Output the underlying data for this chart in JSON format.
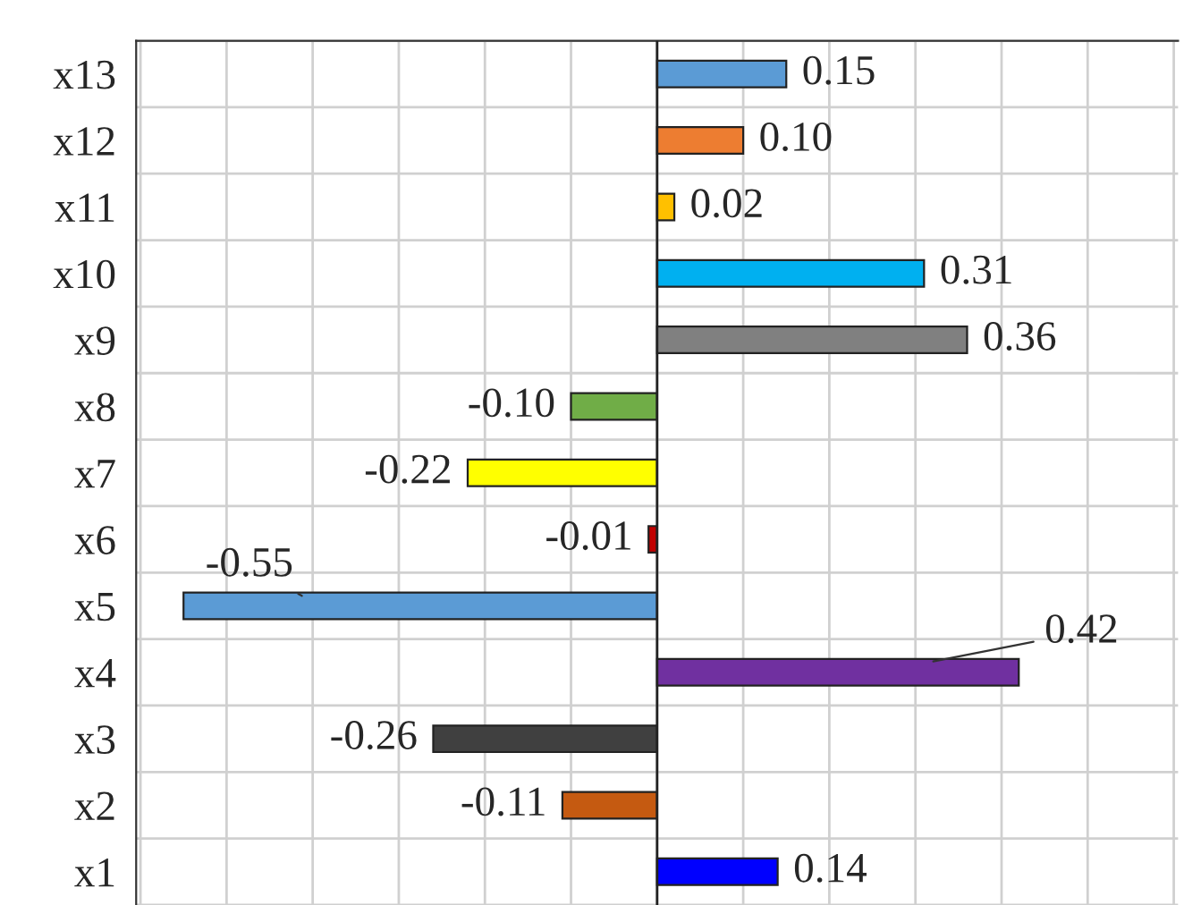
{
  "chart_data": {
    "type": "bar",
    "orientation": "horizontal",
    "categories": [
      "x13",
      "x12",
      "x11",
      "x10",
      "x9",
      "x8",
      "x7",
      "x6",
      "x5",
      "x4",
      "x3",
      "x2",
      "x1"
    ],
    "values": [
      0.15,
      0.1,
      0.02,
      0.31,
      0.36,
      -0.1,
      -0.22,
      -0.01,
      -0.55,
      0.42,
      -0.26,
      -0.11,
      0.14
    ],
    "value_labels": [
      "0.15",
      "0.10",
      "0.02",
      "0.31",
      "0.36",
      "-0.10",
      "-0.22",
      "-0.01",
      "-0.55",
      "0.42",
      "-0.26",
      "-0.11",
      "0.14"
    ],
    "colors": [
      "#5b9bd5",
      "#ed7d31",
      "#ffc000",
      "#00b0f0",
      "#808080",
      "#70ad47",
      "#ffff00",
      "#c00000",
      "#5b9bd5",
      "#7030a0",
      "#404040",
      "#c55a11",
      "#0000ff"
    ],
    "tick_labels": "y",
    "grid": true
  }
}
